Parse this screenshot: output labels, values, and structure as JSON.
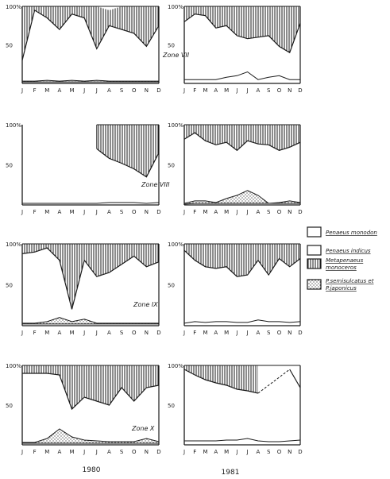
{
  "colors": {
    "ink": "#1a1a1a",
    "paper": "#ffffff"
  },
  "chart_data": {
    "type": "area",
    "months": [
      "J",
      "F",
      "M",
      "A",
      "M",
      "J",
      "J",
      "A",
      "S",
      "O",
      "N",
      "D"
    ],
    "x_labels": [
      "1980",
      "1981"
    ],
    "legend": [
      {
        "key": "monodon",
        "label": "Penaeus monodon",
        "fill": "blank"
      },
      {
        "key": "indicus",
        "label": "Penaeus indicus",
        "fill": "blank"
      },
      {
        "key": "monoceros",
        "label_line1": "Metapenaeus",
        "label_line2": "monoceros",
        "fill": "vertical-hatch"
      },
      {
        "key": "semisulcatus",
        "label_line1": "P.semisulcatus et",
        "label_line2": "P.japonicus",
        "fill": "stipple"
      }
    ],
    "y_ticks": [
      {
        "value": 100,
        "label": "100%"
      },
      {
        "value": 50,
        "label": "50"
      }
    ],
    "zones": [
      {
        "label": "Zone VII",
        "year_1980": {
          "monoceros_top": [
            100,
            100,
            100,
            100,
            100,
            100,
            100,
            95,
            100,
            100,
            100,
            100
          ],
          "monoceros_bottom": [
            30,
            95,
            85,
            70,
            90,
            85,
            45,
            75,
            70,
            65,
            48,
            75
          ],
          "semisulcatus_top": [
            3,
            3,
            4,
            3,
            4,
            3,
            4,
            3,
            3,
            3,
            3,
            3
          ],
          "indicus_top": [
            2,
            2,
            2,
            2,
            2,
            2,
            2,
            2,
            2,
            2,
            2,
            2
          ]
        },
        "year_1981": {
          "monoceros_top": [
            100,
            100,
            100,
            100,
            100,
            100,
            100,
            100,
            100,
            100,
            100,
            100
          ],
          "monoceros_bottom": [
            80,
            90,
            88,
            72,
            75,
            62,
            58,
            60,
            62,
            48,
            40,
            78
          ],
          "indicus_top": [
            5,
            5,
            5,
            5,
            8,
            10,
            15,
            5,
            8,
            10,
            5,
            5
          ]
        }
      },
      {
        "label": "Zone VIII",
        "year_1980": {
          "monoceros_top": [
            null,
            null,
            null,
            null,
            null,
            null,
            100,
            100,
            100,
            100,
            100,
            100
          ],
          "monoceros_bottom": [
            null,
            null,
            null,
            null,
            null,
            null,
            70,
            58,
            52,
            45,
            35,
            65
          ],
          "interpolated_from": 6,
          "indicus_top": [
            2,
            2,
            2,
            2,
            2,
            2,
            2,
            3,
            3,
            3,
            2,
            3
          ]
        },
        "year_1981": {
          "monoceros_top": [
            100,
            100,
            100,
            100,
            100,
            100,
            100,
            100,
            100,
            100,
            100,
            100
          ],
          "monoceros_bottom": [
            82,
            90,
            80,
            75,
            78,
            68,
            80,
            76,
            75,
            68,
            72,
            78
          ],
          "semisulcatus_top": [
            2,
            5,
            5,
            3,
            8,
            12,
            18,
            12,
            2,
            3,
            5,
            3
          ],
          "indicus_top": [
            1,
            2,
            2,
            2,
            2,
            2,
            2,
            2,
            2,
            2,
            2,
            2
          ]
        }
      },
      {
        "label": "Zone IX",
        "year_1980": {
          "monoceros_top": [
            100,
            100,
            100,
            100,
            100,
            100,
            100,
            100,
            100,
            100,
            100,
            100
          ],
          "monoceros_bottom": [
            88,
            90,
            95,
            80,
            20,
            80,
            60,
            65,
            75,
            85,
            72,
            78
          ],
          "semisulcatus_top": [
            3,
            3,
            5,
            10,
            5,
            8,
            3,
            3,
            3,
            3,
            3,
            3
          ],
          "indicus_top": [
            2,
            2,
            2,
            2,
            2,
            2,
            2,
            2,
            2,
            2,
            2,
            2
          ]
        },
        "year_1981": {
          "monoceros_top": [
            100,
            100,
            100,
            100,
            100,
            100,
            100,
            100,
            100,
            100,
            100,
            100
          ],
          "monoceros_bottom": [
            92,
            80,
            72,
            70,
            72,
            60,
            62,
            80,
            62,
            82,
            72,
            82
          ],
          "indicus_top": [
            3,
            5,
            4,
            5,
            5,
            4,
            4,
            7,
            5,
            5,
            4,
            5
          ]
        }
      },
      {
        "label": "Zone X",
        "year_1980": {
          "monoceros_top": [
            100,
            100,
            100,
            100,
            100,
            100,
            100,
            100,
            100,
            100,
            100,
            100
          ],
          "monoceros_bottom": [
            90,
            90,
            90,
            88,
            45,
            60,
            55,
            50,
            72,
            55,
            72,
            75
          ],
          "semisulcatus_top": [
            3,
            3,
            8,
            20,
            10,
            6,
            5,
            4,
            4,
            4,
            8,
            4
          ],
          "indicus_top": [
            2,
            2,
            2,
            2,
            2,
            2,
            2,
            2,
            2,
            2,
            2,
            2
          ]
        },
        "year_1981": {
          "monoceros_top": [
            100,
            100,
            100,
            100,
            100,
            100,
            100,
            100,
            100,
            100,
            100,
            100
          ],
          "monoceros_bottom": [
            95,
            88,
            82,
            78,
            75,
            70,
            68,
            65,
            75,
            85,
            95,
            72
          ],
          "interpolated_after": 7,
          "indicus_top": [
            5,
            5,
            5,
            5,
            6,
            6,
            8,
            5,
            4,
            4,
            5,
            6
          ]
        }
      }
    ]
  }
}
